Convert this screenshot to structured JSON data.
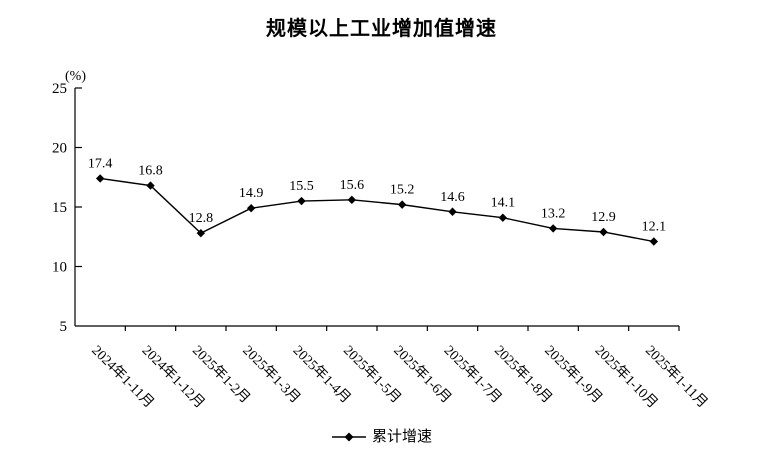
{
  "chart_data": {
    "type": "line",
    "title": "规模以上工业增加值增速",
    "unit_label": "(%)",
    "categories": [
      "2024年1-11月",
      "2024年1-12月",
      "2025年1-2月",
      "2025年1-3月",
      "2025年1-4月",
      "2025年1-5月",
      "2025年1-6月",
      "2025年1-7月",
      "2025年1-8月",
      "2025年1-9月",
      "2025年1-10月",
      "2025年1-11月"
    ],
    "series": [
      {
        "name": "累计增速",
        "values": [
          17.4,
          16.8,
          12.8,
          14.9,
          15.5,
          15.6,
          15.2,
          14.6,
          14.1,
          13.2,
          12.9,
          12.1
        ],
        "marker": "diamond",
        "color": "#000000"
      }
    ],
    "ylim": [
      5,
      25
    ],
    "yticks": [
      5,
      10,
      15,
      20,
      25
    ],
    "grid": false,
    "data_labels": true,
    "legend_position": "bottom",
    "background_color": "#ffffff",
    "axis_color": "#000000"
  }
}
